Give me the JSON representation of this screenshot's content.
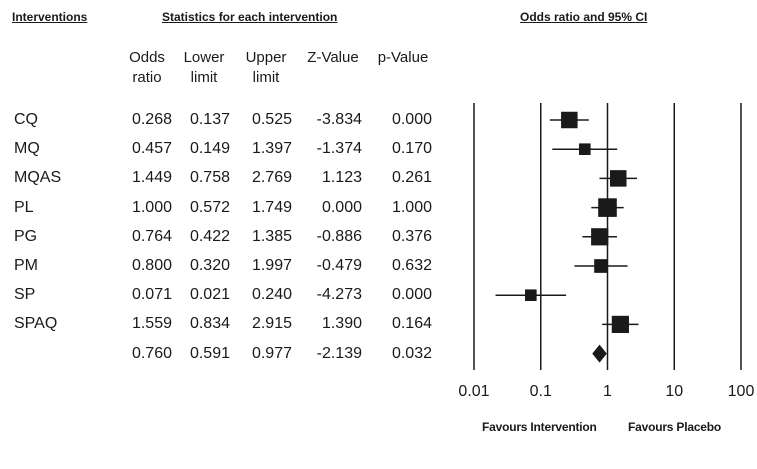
{
  "headers": {
    "interventions": "Interventions",
    "statistics": "Statistics for each intervention",
    "odds_ratio_ci": "Odds ratio and 95% CI"
  },
  "columns": [
    {
      "line1": "Odds",
      "line2": "ratio"
    },
    {
      "line1": "Lower",
      "line2": "limit"
    },
    {
      "line1": "Upper",
      "line2": "limit"
    },
    {
      "line1": "",
      "line2": "Z-Value"
    },
    {
      "line1": "",
      "line2": "p-Value"
    }
  ],
  "favours": {
    "left": "Favours Intervention",
    "right": "Favours Placebo"
  },
  "colors": {
    "text": "#1a1a1a",
    "marker": "#1a1a1a",
    "line": "#1a1a1a"
  },
  "chart_data": {
    "type": "forest",
    "scale": "log",
    "xlim": [
      0.01,
      100
    ],
    "xticks": [
      {
        "value": 0.01,
        "label": "0.01"
      },
      {
        "value": 0.1,
        "label": "0.1"
      },
      {
        "value": 1,
        "label": "1"
      },
      {
        "value": 10,
        "label": "10"
      },
      {
        "value": 100,
        "label": "100"
      }
    ],
    "rows": [
      {
        "label": "CQ",
        "or": "0.268",
        "lower": "0.137",
        "upper": "0.525",
        "z": "-3.834",
        "p": "0.000",
        "weight": 0.75
      },
      {
        "label": "MQ",
        "or": "0.457",
        "lower": "0.149",
        "upper": "1.397",
        "z": "-1.374",
        "p": "0.170",
        "weight": 0.4
      },
      {
        "label": "MQAS",
        "or": "1.449",
        "lower": "0.758",
        "upper": "2.769",
        "z": "1.123",
        "p": "0.261",
        "weight": 0.75
      },
      {
        "label": "PL",
        "or": "1.000",
        "lower": "0.572",
        "upper": "1.749",
        "z": "0.000",
        "p": "1.000",
        "weight": 0.9
      },
      {
        "label": "PG",
        "or": "0.764",
        "lower": "0.422",
        "upper": "1.385",
        "z": "-0.886",
        "p": "0.376",
        "weight": 0.8
      },
      {
        "label": "PM",
        "or": "0.800",
        "lower": "0.320",
        "upper": "1.997",
        "z": "-0.479",
        "p": "0.632",
        "weight": 0.55
      },
      {
        "label": "SP",
        "or": "0.071",
        "lower": "0.021",
        "upper": "0.240",
        "z": "-4.273",
        "p": "0.000",
        "weight": 0.4
      },
      {
        "label": "SPAQ",
        "or": "1.559",
        "lower": "0.834",
        "upper": "2.915",
        "z": "1.390",
        "p": "0.164",
        "weight": 0.8
      }
    ],
    "summary": {
      "label": "",
      "or": "0.760",
      "lower": "0.591",
      "upper": "0.977",
      "z": "-2.139",
      "p": "0.032"
    }
  }
}
